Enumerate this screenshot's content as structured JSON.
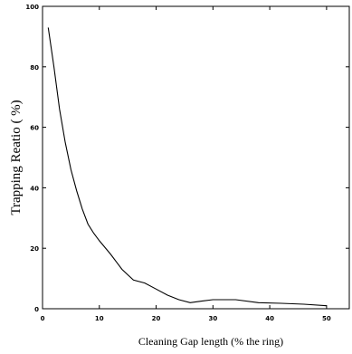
{
  "chart_data": {
    "type": "line",
    "title": "",
    "xlabel": "Cleaning Gap length (% the ring)",
    "ylabel": "Trapping Reatio ( %)",
    "xlim": [
      0,
      54
    ],
    "ylim": [
      0,
      100
    ],
    "x_ticks": [
      0,
      10,
      20,
      30,
      40,
      50
    ],
    "y_ticks": [
      0,
      20,
      40,
      60,
      80,
      100
    ],
    "grid": false,
    "legend": "none",
    "series": [
      {
        "color": "#000000",
        "points": [
          [
            1,
            93
          ],
          [
            2,
            80
          ],
          [
            3,
            66
          ],
          [
            4,
            55
          ],
          [
            5,
            46
          ],
          [
            6,
            39
          ],
          [
            7,
            33
          ],
          [
            8,
            28
          ],
          [
            9,
            25
          ],
          [
            10,
            22.5
          ],
          [
            12,
            18
          ],
          [
            14,
            13
          ],
          [
            16,
            9.5
          ],
          [
            18,
            8.5
          ],
          [
            20,
            6.5
          ],
          [
            22,
            4.5
          ],
          [
            24,
            3
          ],
          [
            26,
            2
          ],
          [
            28,
            2.5
          ],
          [
            30,
            3
          ],
          [
            34,
            3
          ],
          [
            38,
            2
          ],
          [
            42,
            1.8
          ],
          [
            46,
            1.5
          ],
          [
            50,
            1
          ]
        ]
      }
    ]
  }
}
